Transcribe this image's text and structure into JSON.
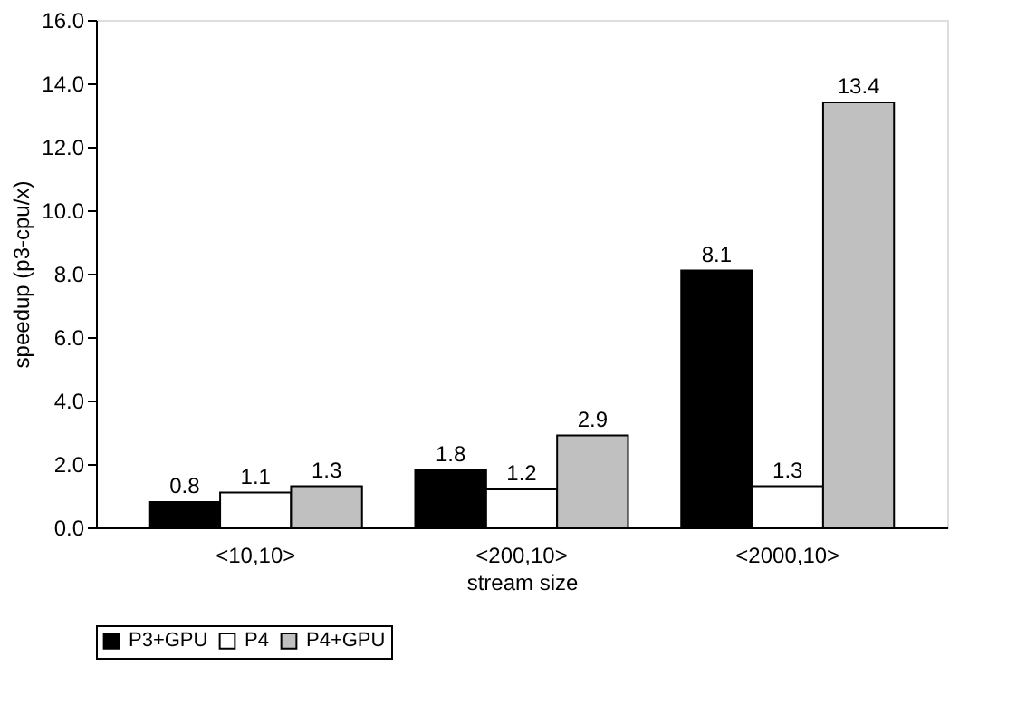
{
  "chart_data": {
    "type": "bar",
    "xlabel": "stream size",
    "ylabel": "speedup (p3-cpu/x)",
    "categories": [
      "<10,10>",
      "<200,10>",
      "<2000,10>"
    ],
    "series": [
      {
        "name": "P3+GPU",
        "color": "#000000",
        "values": [
          0.8,
          1.8,
          8.1
        ]
      },
      {
        "name": "P4",
        "color": "#ffffff",
        "values": [
          1.1,
          1.2,
          1.3
        ]
      },
      {
        "name": "P4+GPU",
        "color": "#c0c0c0",
        "values": [
          1.3,
          2.9,
          13.4
        ]
      }
    ],
    "ylim": [
      0,
      16
    ],
    "yticks": [
      {
        "value": 0,
        "label": "0.0"
      },
      {
        "value": 2,
        "label": "2.0"
      },
      {
        "value": 4,
        "label": "4.0"
      },
      {
        "value": 6,
        "label": "6.0"
      },
      {
        "value": 8,
        "label": "8.0"
      },
      {
        "value": 10,
        "label": "10.0"
      },
      {
        "value": 12,
        "label": "12.0"
      },
      {
        "value": 14,
        "label": "14.0"
      },
      {
        "value": 16,
        "label": "16.0"
      }
    ],
    "data_labels": true,
    "grid": false,
    "legend": "bottom"
  }
}
